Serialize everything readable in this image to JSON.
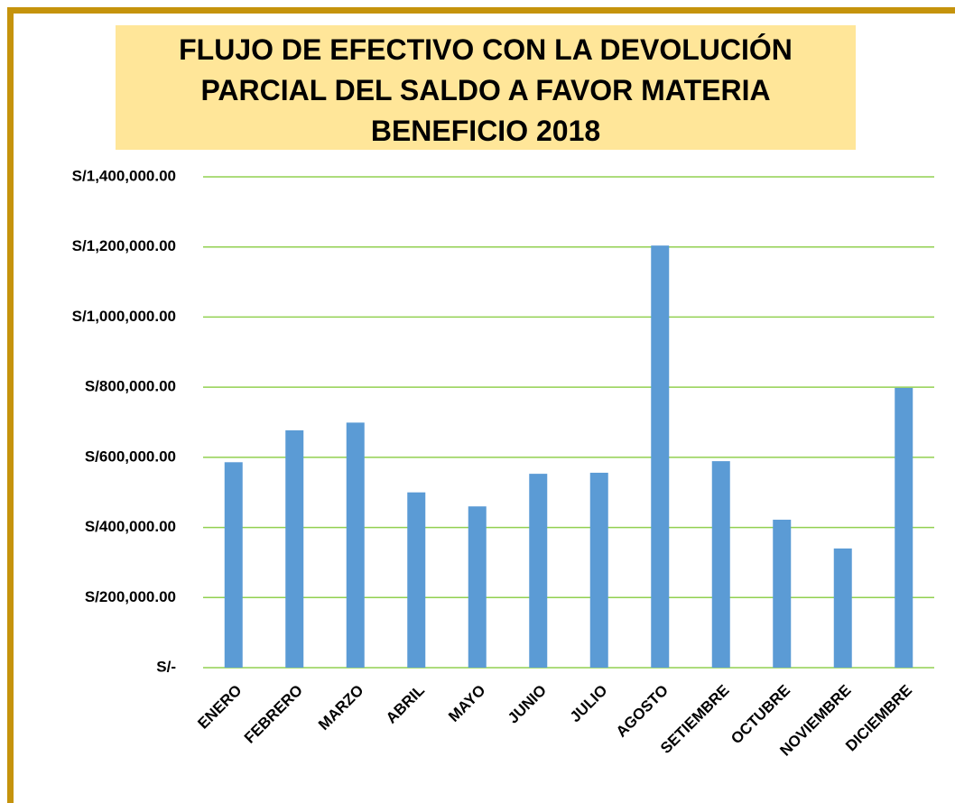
{
  "chart_data": {
    "type": "bar",
    "title": [
      "FLUJO  DE EFECTIVO CON LA DEVOLUCIÓN",
      "PARCIAL DEL SALDO A FAVOR MATERIA",
      "BENEFICIO 2018"
    ],
    "categories": [
      "ENERO",
      "FEBRERO",
      "MARZO",
      "ABRIL",
      "MAYO",
      "JUNIO",
      "JULIO",
      "AGOSTO",
      "SETIEMBRE",
      "OCTUBRE",
      "NOVIEMBRE",
      "DICIEMBRE"
    ],
    "values": [
      586000,
      677000,
      699000,
      500000,
      460000,
      553000,
      556000,
      1204000,
      589000,
      422000,
      340000,
      798000
    ],
    "color": "#5b9bd5",
    "ylim": [
      0,
      1400000
    ],
    "yticks": [
      {
        "value": 0,
        "label": "S/-"
      },
      {
        "value": 200000,
        "label": "S/200,000.00"
      },
      {
        "value": 400000,
        "label": "S/400,000.00"
      },
      {
        "value": 600000,
        "label": "S/600,000.00"
      },
      {
        "value": 800000,
        "label": "S/800,000.00"
      },
      {
        "value": 1000000,
        "label": "S/1,000,000.00"
      },
      {
        "value": 1200000,
        "label": "S/1,200,000.00"
      },
      {
        "value": 1400000,
        "label": "S/1,400,000.00"
      }
    ],
    "grid": true,
    "grid_color": "#92d050"
  }
}
